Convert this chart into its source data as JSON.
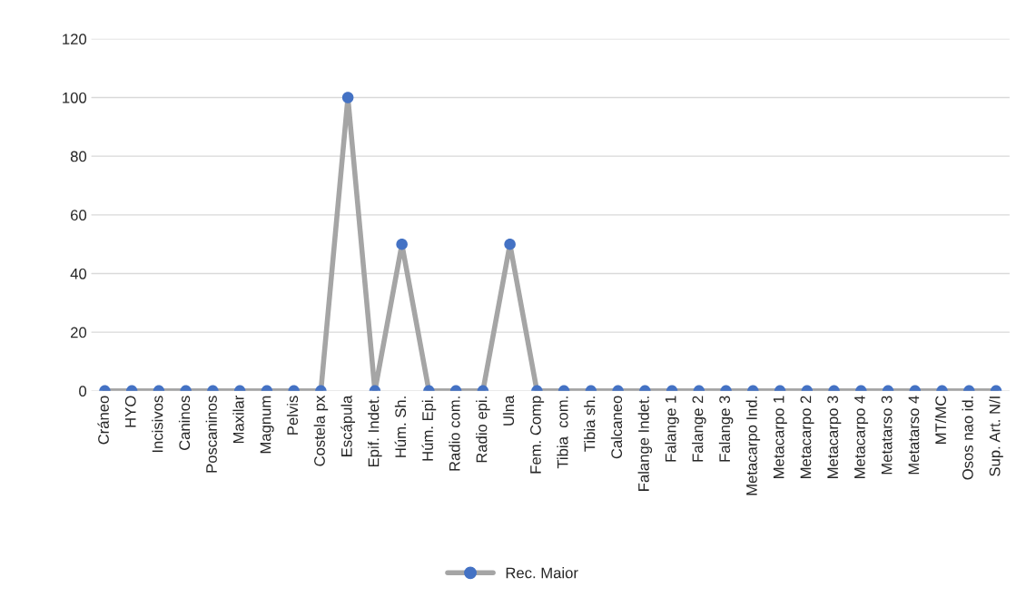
{
  "chart_data": {
    "type": "line",
    "categories": [
      "Cráneo",
      "HYO",
      "Incisivos",
      "Caninos",
      "Poscaninos",
      "Maxilar",
      "Magnum",
      "Pelvis",
      "Costela px",
      "Escápula",
      "Epif. Indet.",
      "Húm. Sh.",
      "Húm. Epi.",
      "Radio com.",
      "Radio epi.",
      "Ulna",
      "Fem. Comp",
      "Tibia  com.",
      "Tibia sh.",
      "Calcaneo",
      "Falange Indet.",
      "Falange 1",
      "Falange 2",
      "Falange 3",
      "Metacarpo Ind.",
      "Metacarpo 1",
      "Metacarpo 2",
      "Metacarpo 3",
      "Metacarpo 4",
      "Metatarso 3",
      "Metatarso 4",
      "MT/MC",
      "Osos nao id.",
      "Sup. Art. N/I"
    ],
    "series": [
      {
        "name": "Rec. Maior",
        "color": "#a5a5a5",
        "colors": [
          "#4472c4",
          "#4472c4",
          "#4472c4",
          "#4472c4",
          "#4472c4",
          "#4472c4",
          "#4472c4",
          "#4472c4",
          "#4472c4",
          "#4472c4",
          "#4472c4",
          "#4472c4",
          "#4472c4",
          "#4472c4",
          "#4472c4",
          "#4472c4",
          "#4472c4",
          "#4472c4",
          "#4472c4",
          "#4472c4",
          "#4472c4",
          "#4472c4",
          "#4472c4",
          "#4472c4",
          "#4472c4",
          "#4472c4",
          "#4472c4",
          "#4472c4",
          "#4472c4",
          "#4472c4",
          "#4472c4",
          "#4472c4",
          "#4472c4",
          "#4472c4"
        ],
        "values": [
          0,
          0,
          0,
          0,
          0,
          0,
          0,
          0,
          0,
          100,
          0,
          50,
          0,
          0,
          0,
          50,
          0,
          0,
          0,
          0,
          0,
          0,
          0,
          0,
          0,
          0,
          0,
          0,
          0,
          0,
          0,
          0,
          0,
          0
        ]
      }
    ],
    "ylim": [
      0,
      120
    ],
    "yticks": [
      0,
      20,
      40,
      60,
      80,
      100,
      120
    ],
    "grid": "y",
    "legend": "bottom",
    "marker": "circle",
    "line_style": "solid"
  }
}
